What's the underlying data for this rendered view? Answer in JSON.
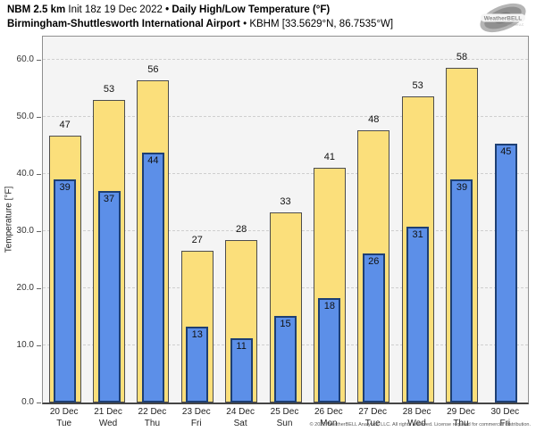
{
  "header": {
    "title_bold1": "NBM 2.5 km",
    "title_regular": "Init 18z 19 Dec 2022",
    "title_sep": "•",
    "title_bold2": "Daily High/Low Temperature (°F)",
    "subtitle_bold": "Birmingham-Shuttlesworth International Airport",
    "subtitle_sep": "•",
    "subtitle_regular": "KBHM [33.5629°N, 86.7535°W]"
  },
  "logo": {
    "text": "WeatherBELL",
    "subtext": "Analytics LLC"
  },
  "chart_data": {
    "type": "bar",
    "title": "Daily High/Low Temperature (°F)",
    "ylabel": "Temperature [°F]",
    "ylim": [
      0,
      64
    ],
    "yticks": [
      0,
      10,
      20,
      30,
      40,
      50,
      60
    ],
    "ytick_labels": [
      "0.0",
      "10.0",
      "20.0",
      "30.0",
      "40.0",
      "50.0",
      "60.0"
    ],
    "grid": "dashed horizontal",
    "legend": "none",
    "categories": [
      {
        "date": "20 Dec",
        "day": "Tue"
      },
      {
        "date": "21 Dec",
        "day": "Wed"
      },
      {
        "date": "22 Dec",
        "day": "Thu"
      },
      {
        "date": "23 Dec",
        "day": "Fri"
      },
      {
        "date": "24 Dec",
        "day": "Sat"
      },
      {
        "date": "25 Dec",
        "day": "Sun"
      },
      {
        "date": "26 Dec",
        "day": "Mon"
      },
      {
        "date": "27 Dec",
        "day": "Tue"
      },
      {
        "date": "28 Dec",
        "day": "Wed"
      },
      {
        "date": "29 Dec",
        "day": "Thu"
      },
      {
        "date": "30 Dec",
        "day": "Fri"
      }
    ],
    "series": [
      {
        "name": "Daily High",
        "fill": "#fbdf7b",
        "border": "#4d4d4d",
        "values": [
          47,
          53,
          56,
          27,
          28,
          33,
          41,
          48,
          53,
          58,
          null
        ],
        "bar_values": [
          46.6,
          52.9,
          56.3,
          26.6,
          28.4,
          33.3,
          41.1,
          47.6,
          53.5,
          58.5,
          null
        ]
      },
      {
        "name": "Daily Low",
        "fill": "#5c8fe8",
        "border": "#1e3f73",
        "values": [
          39,
          37,
          44,
          13,
          11,
          15,
          18,
          26,
          31,
          39,
          45
        ],
        "bar_values": [
          39.1,
          37.0,
          43.7,
          13.3,
          11.3,
          15.2,
          18.2,
          26.0,
          30.8,
          39.1,
          45.3
        ]
      }
    ],
    "colors": {
      "plot_bg": "#f4f4f4",
      "gridline": "#cfcfcf",
      "plot_border": "#8f8f8f",
      "axis_line": "#454545"
    }
  },
  "footer": {
    "copyright": "© 2022 WeatherBELL Analytics, LLC. All rights reserved. License required for commercial distribution."
  }
}
